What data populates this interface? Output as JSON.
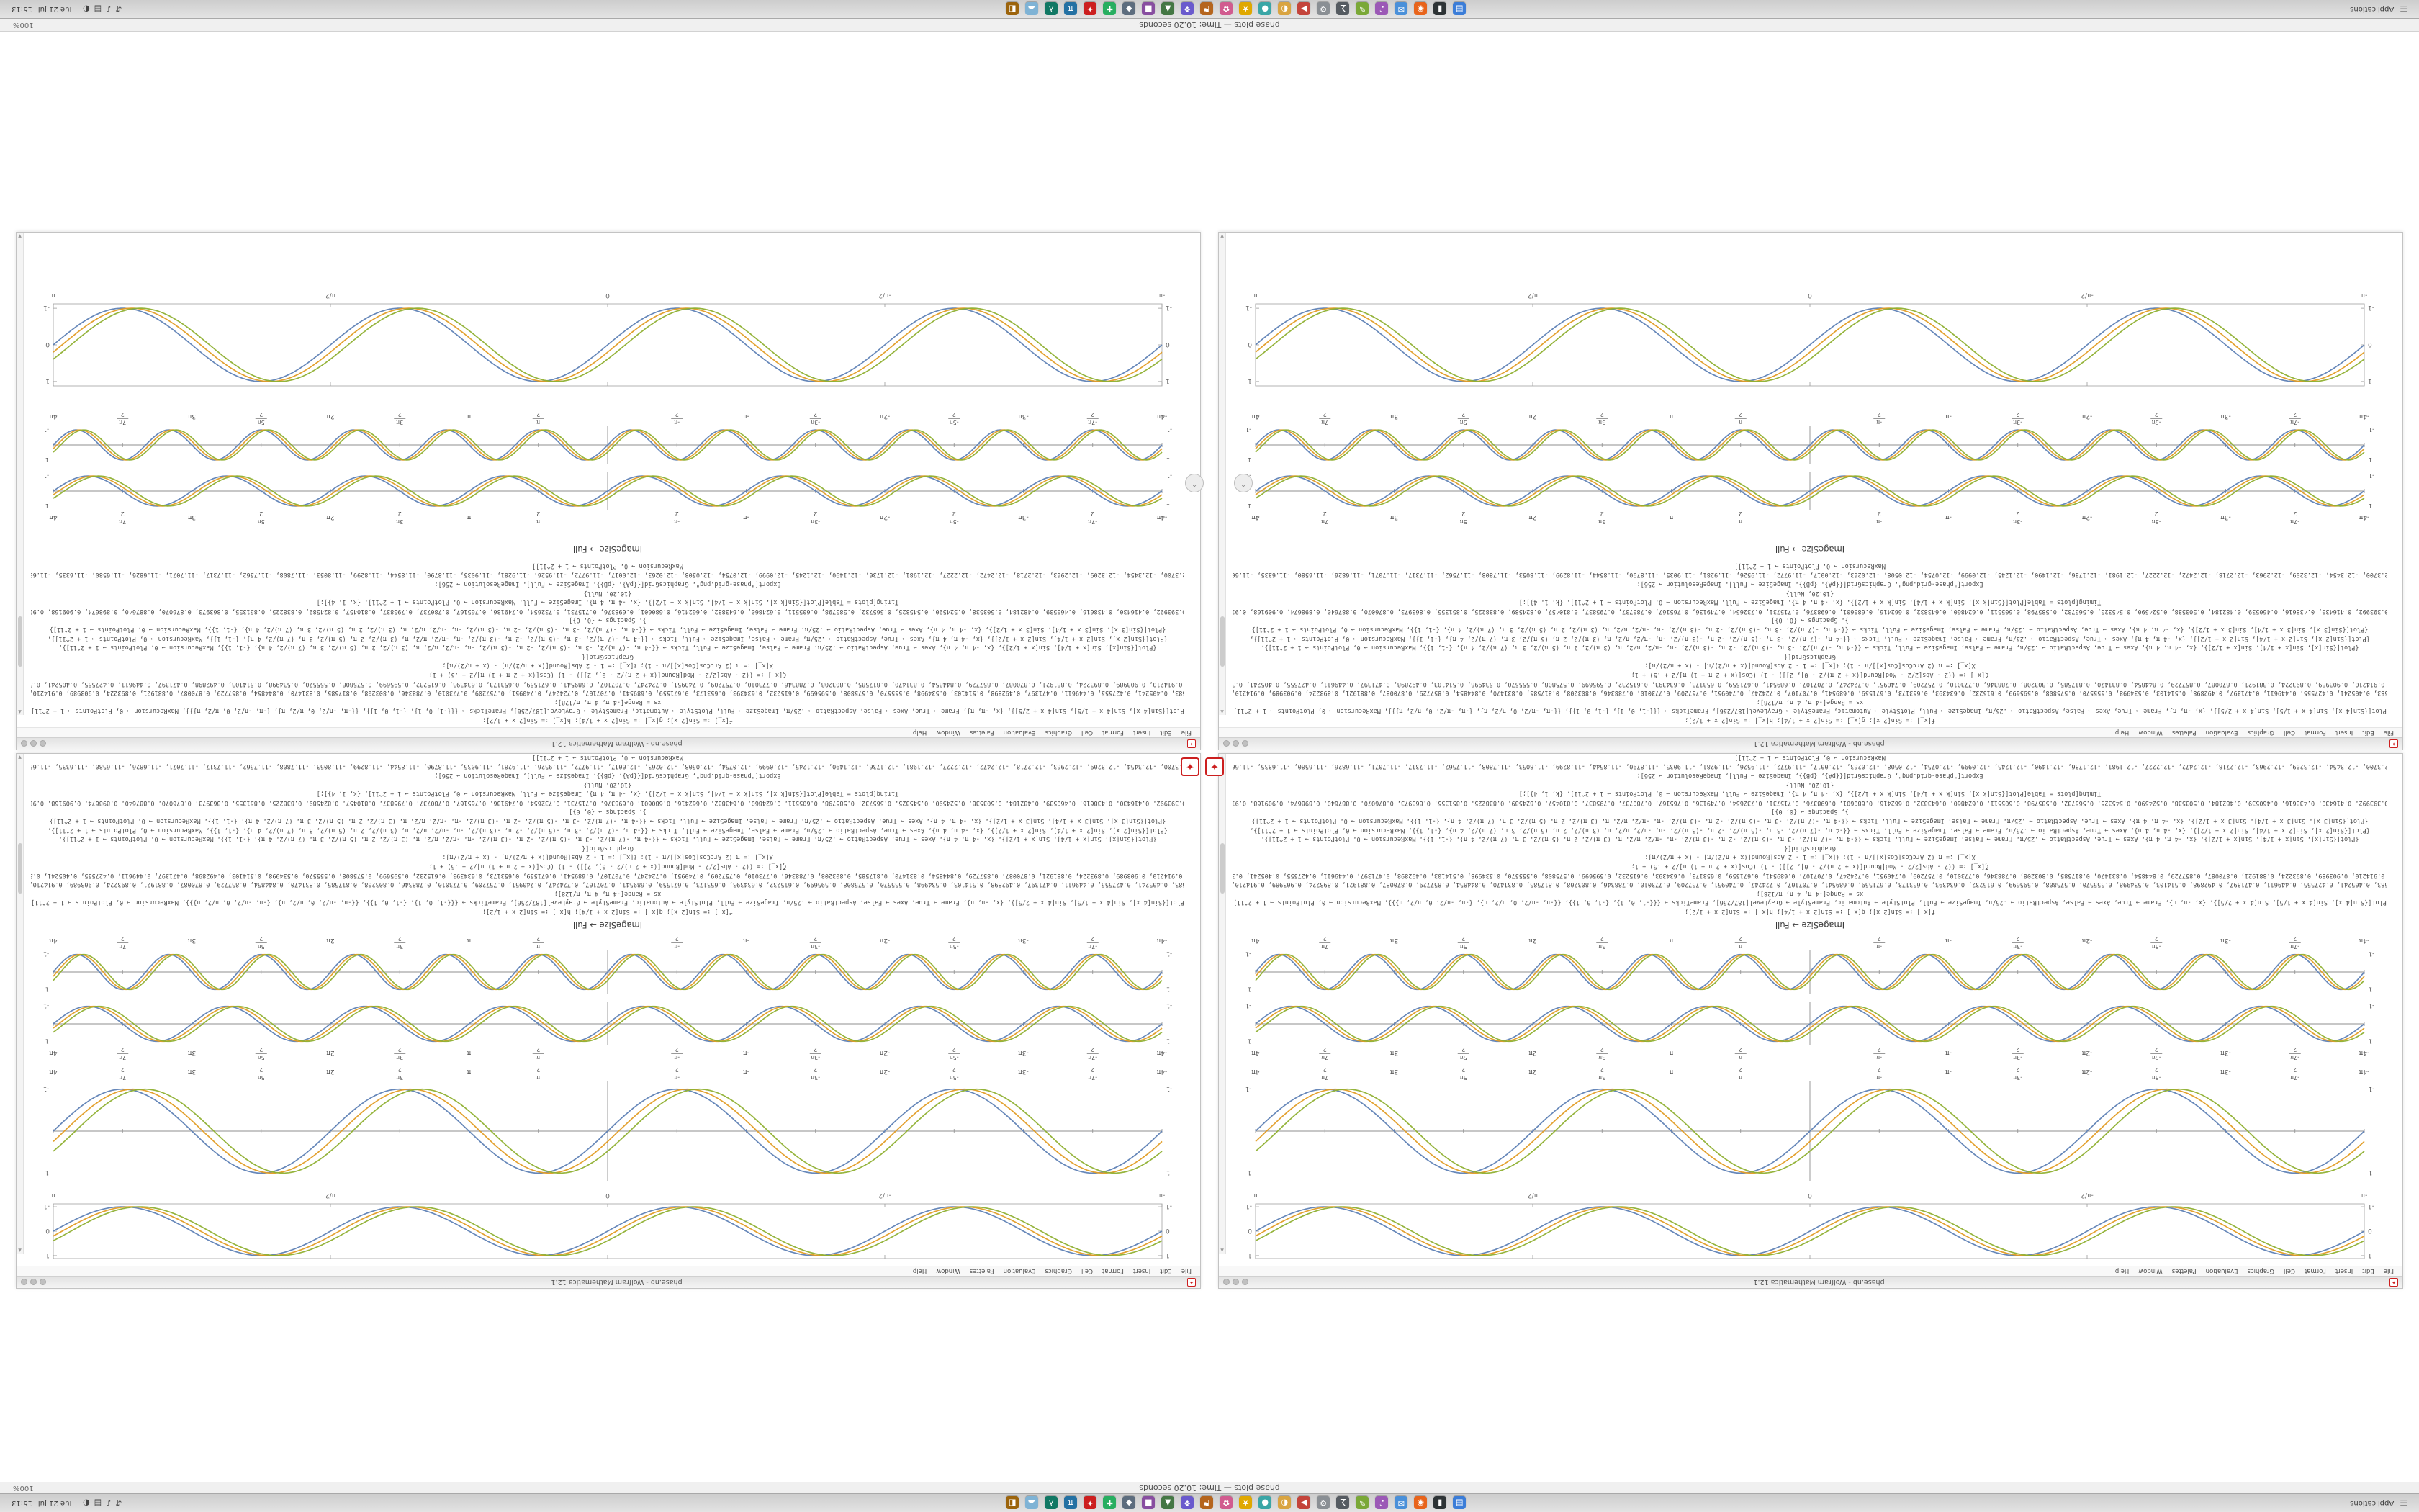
{
  "taskbar": {
    "left_label": "Applications",
    "menu_glyph": "☰",
    "clock": "15:13",
    "date": "Tue 21 Jul",
    "icons": [
      {
        "name": "file-manager",
        "color": "#3b7dd8",
        "glyph": "▤"
      },
      {
        "name": "terminal",
        "color": "#2e3436",
        "glyph": "▮"
      },
      {
        "name": "web-browser",
        "color": "#e8641b",
        "glyph": "◉"
      },
      {
        "name": "mail",
        "color": "#4a90d9",
        "glyph": "✉"
      },
      {
        "name": "music-player",
        "color": "#9b59b6",
        "glyph": "♪"
      },
      {
        "name": "text-editor",
        "color": "#7aa837",
        "glyph": "✎"
      },
      {
        "name": "calculator",
        "color": "#555b61",
        "glyph": "∑"
      },
      {
        "name": "settings",
        "color": "#8a8f94",
        "glyph": "⚙"
      },
      {
        "name": "media-player",
        "color": "#c4443b",
        "glyph": "▶"
      },
      {
        "name": "image-viewer",
        "color": "#d9a441",
        "glyph": "◐"
      },
      {
        "name": "chat",
        "color": "#3aa6a6",
        "glyph": "●"
      },
      {
        "name": "favorites",
        "color": "#e0a800",
        "glyph": "★"
      },
      {
        "name": "photos",
        "color": "#d15b8f",
        "glyph": "✿"
      },
      {
        "name": "flags",
        "color": "#b5651d",
        "glyph": "⚑"
      },
      {
        "name": "launcher",
        "color": "#6a5acd",
        "glyph": "❖"
      },
      {
        "name": "monitor",
        "color": "#447744",
        "glyph": "▲"
      },
      {
        "name": "store",
        "color": "#884ea0",
        "glyph": "■"
      },
      {
        "name": "disk-utility",
        "color": "#5d6d7e",
        "glyph": "◆"
      },
      {
        "name": "add-new",
        "color": "#27ae60",
        "glyph": "✚"
      },
      {
        "name": "wolfram-kernel",
        "color": "#cc1f1f",
        "glyph": "✦"
      },
      {
        "name": "math-tools",
        "color": "#2471a3",
        "glyph": "π"
      },
      {
        "name": "script-runner",
        "color": "#117864",
        "glyph": "λ"
      },
      {
        "name": "cloud",
        "color": "#7fb3d5",
        "glyph": "☁"
      },
      {
        "name": "archive",
        "color": "#9c640c",
        "glyph": "◧"
      }
    ],
    "tray": [
      {
        "name": "network",
        "glyph": "⇵"
      },
      {
        "name": "volume",
        "glyph": "♪"
      },
      {
        "name": "keyboard-layout",
        "glyph": "▤"
      },
      {
        "name": "battery",
        "glyph": "◐"
      }
    ]
  },
  "status_bar": {
    "title": "phase plots — Time: 10.20 seconds",
    "zoom": "100%"
  },
  "window": {
    "title": "phase.nb - Wolfram Mathematica 12.1",
    "menu": [
      "File",
      "Edit",
      "Insert",
      "Format",
      "Cell",
      "Graphics",
      "Evaluation",
      "Palettes",
      "Window",
      "Help"
    ]
  },
  "notebook": {
    "output_label": "ImageSize → Full",
    "code_lines": [
      "f[x_] := Sin[2 x]; g[x_] := Sin[2 x + 1/4]; h[x_] := Sin[2 x + 1/2];",
      "Plot[{Sin[4 x], Sin[4 x + 1/5], Sin[4 x + 2/5]}, {x, -π, π}, Frame → True, Axes → False, AspectRatio → .25/π, ImageSize → Full, PlotStyle → Automatic, FrameStyle → GrayLevel[187/256], FrameTicks → {{{-1, 0, 1}, {-1, 0, 1}}, {{-π, -π/2, 0, π/2, π}, {-π, -π/2, 0, π/2, π}}}, MaxRecursion → 0, PlotPoints → 1 + 2^11]",
      "xs = Range[-4 π, 4 π, π/128];",
      "{0., 0.0245412, 0.0490677, 0.0735646, 0.0980171, 0.122411, 0.146730, 0.170962, 0.195090, 0.219101, 0.242980, 0.266713, 0.290285, 0.313682, 0.336890, 0.359895, 0.382683, 0.405241, 0.427555, 0.449611, 0.471397, 0.492898, 0.514103, 0.534998, 0.555570, 0.575808, 0.595699, 0.615232, 0.634393, 0.653173, 0.671559, 0.689541, 0.707107, 0.724247, 0.740951, 0.757209, 0.773010, 0.788346, 0.803208, 0.817585, 0.831470, 0.844854, 0.857729, 0.870087, 0.881921, 0.893224, 0.903989, 0.914210, 0.923880, 0.932993, 0.941544, 0.949528, 0.956940, 0.963776, 0.970031, 0.975702, 0.980785, 0.985278, 0.989177, 0.992480, 0.995185, 0.997290, 0.998795, 0.999699, 1.}",
      "{1., 0.999699, 0.998795, 0.997290, 0.995185, 0.992480, 0.989177, 0.985278, 0.980785, 0.975702, 0.970031, 0.963776, 0.956940, 0.949528, 0.941544, 0.932993, 0.923880, 0.914210, 0.903989, 0.893224, 0.881921, 0.870087, 0.857729, 0.844854, 0.831470, 0.817585, 0.803208, 0.788346, 0.773010, 0.757209, 0.740951, 0.724247, 0.707107, 0.689541, 0.671559, 0.653173, 0.634393, 0.615232, 0.595699, 0.575808, 0.555570, 0.534998, 0.514103, 0.492898, 0.471397, 0.449611, 0.427555, 0.405241, 0.382683, 0.359895, 0.336890, 0.313682, 0.290285, 0.266713, 0.242980, 0.219101, 0.195090, 0.170962, 0.146730, 0.122411, 0.0980171, 0.0735646, 0.0490677, 0.0245412, 0.}",
      "ζ[x_] := ((2 - Abs[2/2 - Mod[Round[(x + 2 π)/2 - 0], 2]]) - 1) (Cos[(x + 2 π + 1) π]/2 + .5) + 1;",
      "X[x_] := π (2 ArcCos[Cos[x]]/π - 1); ℓ[x_] := 1 - 2 Abs[Round[(x + π/2)/π] - (x + π/2)/π];",
      "GraphicsGrid[{",
      "{Plot[{Sin[x], Sin[x + 1/4], Sin[x + 1/2]}, {x, -4 π, 4 π}, Axes → True, AspectRatio → .25/π, Frame → False, ImageSize → Full, Ticks → {{-4 π, -(7 π)/2, -3 π, -(5 π)/2, -2 π, -(3 π)/2, -π, -π/2, π/2, π, (3 π)/2, 2 π, (5 π)/2, 3 π, (7 π)/2, 4 π}, {-1, 1}}, MaxRecursion → 0, PlotPoints → 1 + 2^11]},",
      "{Plot[{Sin[2 x], Sin[2 x + 1/4], Sin[2 x + 1/2]}, {x, -4 π, 4 π}, Axes → True, AspectRatio → .25/π, Frame → False, ImageSize → Full, Ticks → {{-4 π, -(7 π)/2, -3 π, -(5 π)/2, -2 π, -(3 π)/2, -π, -π/2, π/2, π, (3 π)/2, 2 π, (5 π)/2, 3 π, (7 π)/2, 4 π}, {-1, 1}}, MaxRecursion → 0, PlotPoints → 1 + 2^11]},",
      "{Plot[{Sin[3 x], Sin[3 x + 1/4], Sin[3 x + 1/2]}, {x, -4 π, 4 π}, Axes → True, AspectRatio → .25/π, Frame → False, ImageSize → Full, Ticks → {{-4 π, -(7 π)/2, -3 π, -(5 π)/2, -2 π, -(3 π)/2, -π, -π/2, π/2, π, (3 π)/2, 2 π, (5 π)/2, 3 π, (7 π)/2, 4 π}, {-1, 1}}, MaxRecursion → 0, PlotPoints → 1 + 2^11]}",
      "}, Spacings → {0, 0}]",
      "{0.0122715, 0.0368072, 0.0613207, 0.0857973, 0.110222, 0.134581, 0.158858, 0.183040, 0.207111, 0.231058, 0.254866, 0.278520, 0.302006, 0.325310, 0.348419, 0.371317, 0.393992, 0.416430, 0.438616, 0.460539, 0.482184, 0.503538, 0.524590, 0.545325, 0.565732, 0.585798, 0.605511, 0.624860, 0.643832, 0.662416, 0.680601, 0.698376, 0.715731, 0.732654, 0.749136, 0.765167, 0.780737, 0.795837, 0.810457, 0.824589, 0.838225, 0.851355, 0.863973, 0.876070, 0.887640, 0.898674, 0.909168, 0.919114, 0.928506, 0.937339, 0.945607, 0.953306, 0.960431, 0.966976, 0.972940, 0.978317, 0.983105, 0.987301, 0.990903, 0.993907, 0.996313, 0.998118, 0.999322, 0.999925}",
      "Timing[plots = Table[Plot[{Sin[k x], Sin[k x + 1/4], Sin[k x + 1/2]}, {x, -4 π, 4 π}, ImageSize → Full, MaxRecursion → 0, PlotPoints → 1 + 2^11], {k, 1, 4}];]",
      "{10.20, Null}",
      "Export[\"phase-grid.png\", GraphicsGrid[{{pA}, {pB}}, ImageSize → Full], ImageResolution → 256];",
      "{-12.5664, -12.5418, -12.5173, -12.4927, -12.4682, -12.4436, -12.4191, -12.3945, -12.3700, -12.3454, -12.3209, -12.2963, -12.2718, -12.2472, -12.2227, -12.1981, -12.1736, -12.1490, -12.1245, -12.0999, -12.0754, -12.0508, -12.0263, -12.0017, -11.9772, -11.9526, -11.9281, -11.9035, -11.8790, -11.8544, -11.8299, -11.8053, -11.7808, -11.7562, -11.7317, -11.7071, -11.6826, -11.6580, -11.6335, -11.6089, -11.5844, -11.5598, -11.5353, -11.5107, -11.4862, -11.4616, -11.4371, -11.4125}",
      "MaxRecursion → 0, PlotPoints → 1 + 2^11]]"
    ]
  },
  "desktop_icons": {
    "spikey_glyph": "✦",
    "scroll_button_glyph": "⌃"
  },
  "chart_data": [
    {
      "id": "framed-phase-plot",
      "type": "line",
      "function": "Sin[frequency·x + phase]",
      "frequency": 4,
      "phases": [
        0,
        0.2,
        0.4
      ],
      "series": [
        {
          "name": "Sin[4x]",
          "phase": 0
        },
        {
          "name": "Sin[4x + 1/5]",
          "phase": 0.2
        },
        {
          "name": "Sin[4x + 2/5]",
          "phase": 0.4
        }
      ],
      "x_range_pi": [
        -1,
        1
      ],
      "x_tick_values_pi": [
        -1,
        -0.5,
        0,
        0.5,
        1
      ],
      "x_tick_labels": [
        "-π",
        "-π/2",
        "0",
        "π/2",
        "π"
      ],
      "y_ticks": [
        -1,
        0,
        1
      ],
      "ylim": [
        -1.12,
        1.12
      ],
      "frame": true,
      "grid": false,
      "legend_position": "none",
      "colors": [
        "#5e81b5",
        "#e19c24",
        "#8fb032"
      ]
    },
    {
      "id": "axes-sine-1x",
      "type": "line",
      "function": "Sin[frequency·x + phase]",
      "frequency": 1,
      "phases": [
        0,
        0.25,
        0.5
      ],
      "series": [
        {
          "name": "Sin[x]",
          "phase": 0
        },
        {
          "name": "Sin[x + 1/4]",
          "phase": 0.25
        },
        {
          "name": "Sin[x + 1/2]",
          "phase": 0.5
        }
      ],
      "x_range_pi": [
        -4,
        4
      ],
      "x_tick_values_pi": [
        -4,
        -3.5,
        -3,
        -2.5,
        -2,
        -1.5,
        -1,
        -0.5,
        0.5,
        1,
        1.5,
        2,
        2.5,
        3,
        3.5,
        4
      ],
      "x_tick_labels": [
        "-4π",
        "-7π/2",
        "-3π",
        "-5π/2",
        "-2π",
        "-3π/2",
        "-π",
        "-π/2",
        "π/2",
        "π",
        "3π/2",
        "2π",
        "5π/2",
        "3π",
        "7π/2",
        "4π"
      ],
      "y_ticks": [
        -1,
        1
      ],
      "ylim": [
        -1.15,
        1.15
      ],
      "frame": false,
      "grid": false,
      "legend_position": "none",
      "colors": [
        "#5e81b5",
        "#e19c24",
        "#8fb032"
      ]
    },
    {
      "id": "axes-sine-2x",
      "type": "line",
      "function": "Sin[frequency·x + phase]",
      "frequency": 2,
      "phases": [
        0,
        0.25,
        0.5
      ],
      "series": [
        {
          "name": "Sin[2x]",
          "phase": 0
        },
        {
          "name": "Sin[2x + 1/4]",
          "phase": 0.25
        },
        {
          "name": "Sin[2x + 1/2]",
          "phase": 0.5
        }
      ],
      "x_range_pi": [
        -4,
        4
      ],
      "x_tick_values_pi": [
        -4,
        -3.5,
        -3,
        -2.5,
        -2,
        -1.5,
        -1,
        -0.5,
        0.5,
        1,
        1.5,
        2,
        2.5,
        3,
        3.5,
        4
      ],
      "x_tick_labels": [
        "-4π",
        "-7π/2",
        "-3π",
        "-5π/2",
        "-2π",
        "-3π/2",
        "-π",
        "-π/2",
        "π/2",
        "π",
        "3π/2",
        "2π",
        "5π/2",
        "3π",
        "7π/2",
        "4π"
      ],
      "y_ticks": [
        -1,
        1
      ],
      "ylim": [
        -1.15,
        1.15
      ],
      "frame": false,
      "grid": false,
      "legend_position": "none",
      "colors": [
        "#5e81b5",
        "#e19c24",
        "#8fb032"
      ]
    },
    {
      "id": "axes-sine-3x",
      "type": "line",
      "function": "Sin[frequency·x + phase]",
      "frequency": 3,
      "phases": [
        0,
        0.25,
        0.5
      ],
      "series": [
        {
          "name": "Sin[3x]",
          "phase": 0
        },
        {
          "name": "Sin[3x + 1/4]",
          "phase": 0.25
        },
        {
          "name": "Sin[3x + 1/2]",
          "phase": 0.5
        }
      ],
      "x_range_pi": [
        -4,
        4
      ],
      "x_tick_values_pi": [
        -4,
        -3.5,
        -3,
        -2.5,
        -2,
        -1.5,
        -1,
        -0.5,
        0.5,
        1,
        1.5,
        2,
        2.5,
        3,
        3.5,
        4
      ],
      "x_tick_labels": [
        "-4π",
        "-7π/2",
        "-3π",
        "-5π/2",
        "-2π",
        "-3π/2",
        "-π",
        "-π/2",
        "π/2",
        "π",
        "3π/2",
        "2π",
        "5π/2",
        "3π",
        "7π/2",
        "4π"
      ],
      "y_ticks": [
        -1,
        1
      ],
      "ylim": [
        -1.15,
        1.15
      ],
      "frame": false,
      "grid": false,
      "legend_position": "none",
      "colors": [
        "#5e81b5",
        "#e19c24",
        "#8fb032"
      ]
    }
  ]
}
